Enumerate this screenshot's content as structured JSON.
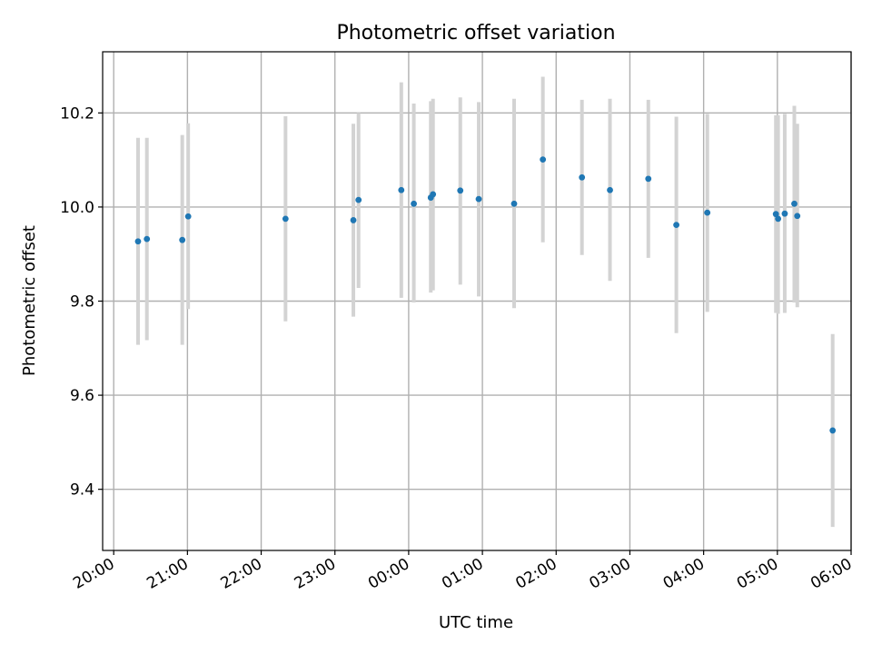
{
  "chart_data": {
    "type": "scatter",
    "title": "Photometric offset variation",
    "xlabel": "UTC time",
    "ylabel": "Photometric offset",
    "x_unit": "hour",
    "xlim": [
      19.85,
      30.0
    ],
    "ylim": [
      9.27,
      10.33
    ],
    "x_ticks": [
      {
        "value": 20,
        "label": "20:00"
      },
      {
        "value": 21,
        "label": "21:00"
      },
      {
        "value": 22,
        "label": "22:00"
      },
      {
        "value": 23,
        "label": "23:00"
      },
      {
        "value": 24,
        "label": "00:00"
      },
      {
        "value": 25,
        "label": "01:00"
      },
      {
        "value": 26,
        "label": "02:00"
      },
      {
        "value": 27,
        "label": "03:00"
      },
      {
        "value": 28,
        "label": "04:00"
      },
      {
        "value": 29,
        "label": "05:00"
      },
      {
        "value": 30,
        "label": "06:00"
      }
    ],
    "y_ticks": [
      {
        "value": 9.4,
        "label": "9.4"
      },
      {
        "value": 9.6,
        "label": "9.6"
      },
      {
        "value": 9.8,
        "label": "9.8"
      },
      {
        "value": 10.0,
        "label": "10.0"
      },
      {
        "value": 10.2,
        "label": "10.2"
      }
    ],
    "grid": true,
    "colors": {
      "points": "#1f77b4",
      "errorbars": "#d3d3d3"
    },
    "points": [
      {
        "x": 20.33,
        "y": 9.927,
        "ylo": 9.707,
        "yhi": 10.147
      },
      {
        "x": 20.45,
        "y": 9.932,
        "ylo": 9.717,
        "yhi": 10.147
      },
      {
        "x": 20.93,
        "y": 9.93,
        "ylo": 9.707,
        "yhi": 10.153
      },
      {
        "x": 21.01,
        "y": 9.98,
        "ylo": 9.783,
        "yhi": 10.178
      },
      {
        "x": 22.33,
        "y": 9.975,
        "ylo": 9.757,
        "yhi": 10.193
      },
      {
        "x": 23.25,
        "y": 9.972,
        "ylo": 9.767,
        "yhi": 10.177
      },
      {
        "x": 23.32,
        "y": 10.015,
        "ylo": 9.828,
        "yhi": 10.2
      },
      {
        "x": 23.9,
        "y": 10.036,
        "ylo": 9.807,
        "yhi": 10.265
      },
      {
        "x": 24.07,
        "y": 10.007,
        "ylo": 9.797,
        "yhi": 10.22
      },
      {
        "x": 24.3,
        "y": 10.02,
        "ylo": 9.818,
        "yhi": 10.225
      },
      {
        "x": 24.33,
        "y": 10.027,
        "ylo": 9.823,
        "yhi": 10.23
      },
      {
        "x": 24.7,
        "y": 10.035,
        "ylo": 9.835,
        "yhi": 10.233
      },
      {
        "x": 24.95,
        "y": 10.017,
        "ylo": 9.81,
        "yhi": 10.223
      },
      {
        "x": 25.43,
        "y": 10.007,
        "ylo": 9.785,
        "yhi": 10.23
      },
      {
        "x": 25.82,
        "y": 10.101,
        "ylo": 9.925,
        "yhi": 10.277
      },
      {
        "x": 26.35,
        "y": 10.063,
        "ylo": 9.898,
        "yhi": 10.228
      },
      {
        "x": 26.73,
        "y": 10.036,
        "ylo": 9.843,
        "yhi": 10.23
      },
      {
        "x": 27.25,
        "y": 10.06,
        "ylo": 9.892,
        "yhi": 10.228
      },
      {
        "x": 27.63,
        "y": 9.962,
        "ylo": 9.732,
        "yhi": 10.192
      },
      {
        "x": 28.05,
        "y": 9.988,
        "ylo": 9.777,
        "yhi": 10.198
      },
      {
        "x": 28.98,
        "y": 9.985,
        "ylo": 9.775,
        "yhi": 10.195
      },
      {
        "x": 29.01,
        "y": 9.975,
        "ylo": 9.773,
        "yhi": 10.195
      },
      {
        "x": 29.1,
        "y": 9.986,
        "ylo": 9.775,
        "yhi": 10.198
      },
      {
        "x": 29.23,
        "y": 10.007,
        "ylo": 9.797,
        "yhi": 10.215
      },
      {
        "x": 29.27,
        "y": 9.981,
        "ylo": 9.787,
        "yhi": 10.177
      },
      {
        "x": 29.75,
        "y": 9.525,
        "ylo": 9.32,
        "yhi": 9.73
      }
    ]
  }
}
